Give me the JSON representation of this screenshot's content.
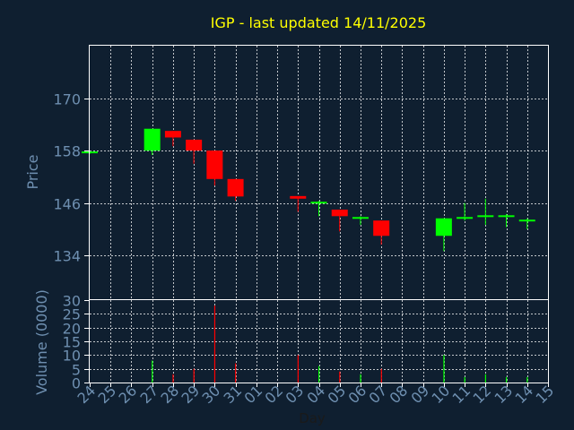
{
  "chart_data": [
    {
      "type": "candlestick",
      "title": "IGP - last updated 14/11/2025",
      "xlabel": "Day",
      "ylabel": "Price",
      "ylim": [
        124,
        182
      ],
      "yticks": [
        134,
        146,
        158,
        170
      ],
      "grid": true,
      "colors": {
        "up": "#00ff00",
        "down": "#ff0000",
        "title": "#ffff00",
        "axis_text": "#6e8fb0",
        "background": "#0f1f30",
        "frame": "#ffffff"
      },
      "x": [
        "24",
        "25",
        "26",
        "27",
        "28",
        "29",
        "30",
        "31",
        "01",
        "02",
        "03",
        "04",
        "05",
        "06",
        "07",
        "08",
        "09",
        "10",
        "11",
        "12",
        "13",
        "14",
        "15"
      ],
      "candles": [
        {
          "x": "24",
          "o": 157.5,
          "h": 157.8,
          "l": 157.2,
          "c": 157.8
        },
        {
          "x": "27",
          "o": 158.0,
          "h": 163.0,
          "l": 157.0,
          "c": 163.0
        },
        {
          "x": "28",
          "o": 162.5,
          "h": 162.5,
          "l": 159.0,
          "c": 161.0
        },
        {
          "x": "29",
          "o": 160.5,
          "h": 160.5,
          "l": 155.0,
          "c": 158.0
        },
        {
          "x": "30",
          "o": 158.0,
          "h": 158.0,
          "l": 150.0,
          "c": 151.5
        },
        {
          "x": "31",
          "o": 151.5,
          "h": 151.5,
          "l": 146.5,
          "c": 147.5
        },
        {
          "x": "03",
          "o": 147.6,
          "h": 147.6,
          "l": 144.0,
          "c": 147.0
        },
        {
          "x": "04",
          "o": 146.0,
          "h": 146.5,
          "l": 143.0,
          "c": 146.3
        },
        {
          "x": "05",
          "o": 144.5,
          "h": 144.5,
          "l": 139.5,
          "c": 143.0
        },
        {
          "x": "06",
          "o": 142.5,
          "h": 143.0,
          "l": 141.0,
          "c": 142.8
        },
        {
          "x": "07",
          "o": 142.0,
          "h": 142.0,
          "l": 136.5,
          "c": 138.5
        },
        {
          "x": "10",
          "o": 138.5,
          "h": 142.5,
          "l": 135.0,
          "c": 142.5
        },
        {
          "x": "11",
          "o": 142.5,
          "h": 146.0,
          "l": 142.0,
          "c": 142.8
        },
        {
          "x": "12",
          "o": 142.8,
          "h": 147.0,
          "l": 141.0,
          "c": 143.2
        },
        {
          "x": "13",
          "o": 143.0,
          "h": 143.5,
          "l": 140.5,
          "c": 143.2
        },
        {
          "x": "14",
          "o": 142.0,
          "h": 142.5,
          "l": 140.0,
          "c": 142.2
        }
      ]
    },
    {
      "type": "bar",
      "xlabel": "Day",
      "ylabel": "Volume (0000)",
      "ylim": [
        0,
        30
      ],
      "yticks": [
        0,
        5,
        10,
        15,
        20,
        25,
        30
      ],
      "grid": true,
      "bars": [
        {
          "x": "27",
          "value": 8,
          "dir": "up"
        },
        {
          "x": "28",
          "value": 3,
          "dir": "down"
        },
        {
          "x": "29",
          "value": 5,
          "dir": "down"
        },
        {
          "x": "30",
          "value": 28,
          "dir": "down"
        },
        {
          "x": "31",
          "value": 7,
          "dir": "down"
        },
        {
          "x": "03",
          "value": 10,
          "dir": "down"
        },
        {
          "x": "04",
          "value": 6,
          "dir": "up"
        },
        {
          "x": "05",
          "value": 4,
          "dir": "down"
        },
        {
          "x": "06",
          "value": 3,
          "dir": "up"
        },
        {
          "x": "07",
          "value": 5,
          "dir": "down"
        },
        {
          "x": "10",
          "value": 10,
          "dir": "up"
        },
        {
          "x": "11",
          "value": 2,
          "dir": "up"
        },
        {
          "x": "12",
          "value": 3,
          "dir": "up"
        },
        {
          "x": "13",
          "value": 2,
          "dir": "up"
        },
        {
          "x": "14",
          "value": 2,
          "dir": "up"
        }
      ]
    }
  ]
}
